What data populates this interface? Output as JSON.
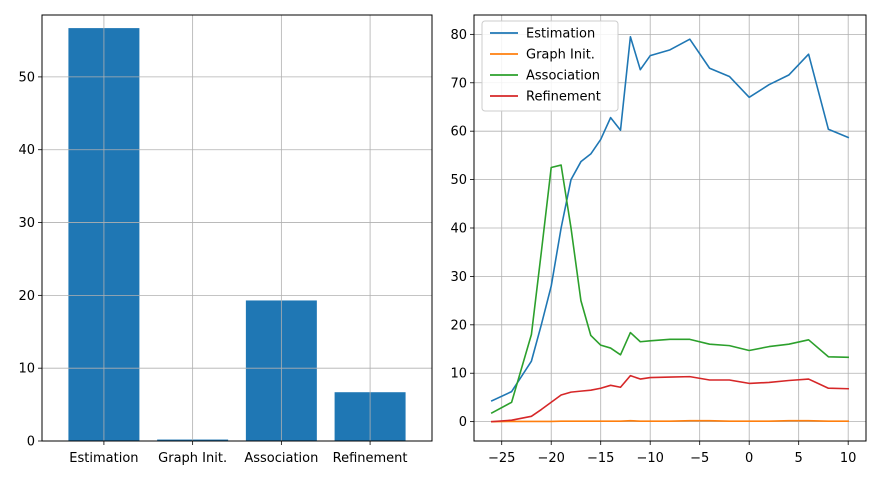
{
  "chart_data": [
    {
      "type": "bar",
      "title": "",
      "xlabel": "",
      "ylabel": "",
      "categories": [
        "Estimation",
        "Graph Init.",
        "Association",
        "Refinement"
      ],
      "values": [
        56.7,
        0.2,
        19.3,
        6.7
      ],
      "ylim": [
        0,
        58.5
      ],
      "yticks": [
        0,
        10,
        20,
        30,
        40,
        50
      ],
      "grid": true,
      "color": "#1f77b4"
    },
    {
      "type": "line",
      "title": "",
      "xlabel": "",
      "ylabel": "",
      "x": [
        -26,
        -24,
        -22,
        -21,
        -20,
        -19,
        -18,
        -17,
        -16,
        -15,
        -14,
        -13,
        -12,
        -11,
        -10,
        -8,
        -6,
        -4,
        -2,
        0,
        2,
        4,
        6,
        8,
        10
      ],
      "xlim": [
        -27.8,
        11.8
      ],
      "ylim": [
        -4,
        84
      ],
      "xticks": [
        -25,
        -20,
        -15,
        -10,
        -5,
        0,
        5,
        10
      ],
      "yticks": [
        0,
        10,
        20,
        30,
        40,
        50,
        60,
        70,
        80
      ],
      "grid": true,
      "legend_position": "top-left",
      "series": [
        {
          "name": "Estimation",
          "color": "#1f77b4",
          "values": [
            4.3,
            6.2,
            12.5,
            20.0,
            28.0,
            40.0,
            50.0,
            53.7,
            55.3,
            58.3,
            62.8,
            60.2,
            79.5,
            72.7,
            75.6,
            76.8,
            79.0,
            73.0,
            71.3,
            67.0,
            69.6,
            71.6,
            75.9,
            60.4,
            58.7
          ]
        },
        {
          "name": "Graph Init.",
          "color": "#ff7f0e",
          "values": [
            0.0,
            0.05,
            0.05,
            0.05,
            0.05,
            0.1,
            0.1,
            0.1,
            0.1,
            0.1,
            0.1,
            0.1,
            0.2,
            0.1,
            0.1,
            0.1,
            0.2,
            0.2,
            0.1,
            0.1,
            0.1,
            0.2,
            0.2,
            0.1,
            0.1
          ]
        },
        {
          "name": "Association",
          "color": "#2ca02c",
          "values": [
            1.8,
            4.0,
            18.0,
            35.0,
            52.5,
            53.0,
            40.0,
            25.0,
            17.8,
            15.8,
            15.2,
            13.8,
            18.4,
            16.5,
            16.7,
            17.0,
            17.0,
            16.0,
            15.7,
            14.7,
            15.5,
            16.0,
            16.9,
            13.4,
            13.3
          ]
        },
        {
          "name": "Refinement",
          "color": "#d62728",
          "values": [
            0.0,
            0.3,
            1.1,
            2.5,
            4.0,
            5.5,
            6.1,
            6.3,
            6.5,
            6.9,
            7.5,
            7.1,
            9.5,
            8.8,
            9.1,
            9.2,
            9.3,
            8.6,
            8.6,
            7.9,
            8.1,
            8.5,
            8.8,
            6.9,
            6.8
          ]
        }
      ]
    }
  ]
}
